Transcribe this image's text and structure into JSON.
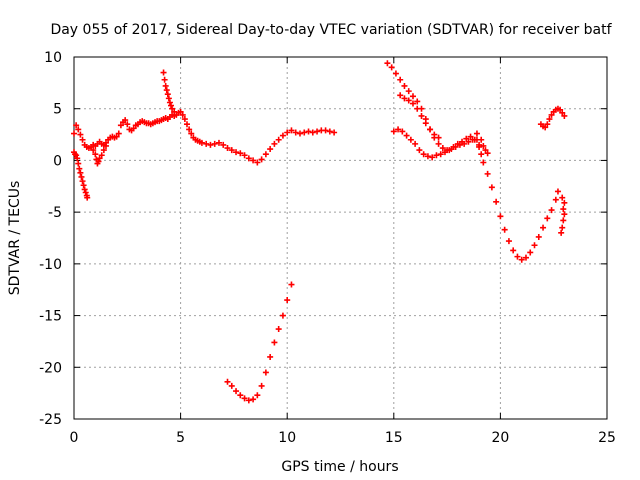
{
  "chart_data": {
    "type": "scatter",
    "title": "Day 055 of 2017, Sidereal Day-to-day VTEC variation (SDTVAR) for receiver batf",
    "xlabel": "GPS time / hours",
    "ylabel": "SDTVAR / TECUs",
    "xlim": [
      0,
      25
    ],
    "ylim": [
      -25,
      10
    ],
    "xticks": [
      0,
      5,
      10,
      15,
      20,
      25
    ],
    "yticks": [
      -25,
      -20,
      -15,
      -10,
      -5,
      0,
      5,
      10
    ],
    "xtick_labels": [
      "0",
      "5",
      "10",
      "15",
      "20",
      "25"
    ],
    "ytick_labels": [
      "-25",
      "-20",
      "-15",
      "-10",
      "-5",
      "0",
      "5",
      "10"
    ],
    "grid": true,
    "marker": "plus",
    "color": "#ff0000",
    "series": [
      {
        "points": [
          [
            0.0,
            2.6
          ],
          [
            0.1,
            3.4
          ],
          [
            0.2,
            3.0
          ],
          [
            0.3,
            2.5
          ],
          [
            0.4,
            2.0
          ],
          [
            0.5,
            1.5
          ],
          [
            0.6,
            1.3
          ],
          [
            0.7,
            1.2
          ],
          [
            0.8,
            1.3
          ],
          [
            0.9,
            1.5
          ],
          [
            1.0,
            1.4
          ],
          [
            1.1,
            1.6
          ],
          [
            1.2,
            1.8
          ],
          [
            1.3,
            1.6
          ],
          [
            1.4,
            1.5
          ],
          [
            1.5,
            1.7
          ],
          [
            1.6,
            2.0
          ],
          [
            1.7,
            2.2
          ],
          [
            1.8,
            2.3
          ],
          [
            1.9,
            2.2
          ],
          [
            2.0,
            2.3
          ],
          [
            2.1,
            2.6
          ],
          [
            2.2,
            3.4
          ],
          [
            2.3,
            3.7
          ],
          [
            2.4,
            3.9
          ],
          [
            2.5,
            3.5
          ],
          [
            2.6,
            3.0
          ],
          [
            2.7,
            2.9
          ],
          [
            2.8,
            3.1
          ],
          [
            2.9,
            3.4
          ],
          [
            3.0,
            3.5
          ],
          [
            3.1,
            3.7
          ],
          [
            3.2,
            3.8
          ],
          [
            3.3,
            3.7
          ],
          [
            3.4,
            3.6
          ],
          [
            3.5,
            3.6
          ],
          [
            3.6,
            3.5
          ],
          [
            3.7,
            3.6
          ],
          [
            3.8,
            3.7
          ],
          [
            3.9,
            3.8
          ],
          [
            4.0,
            3.8
          ],
          [
            4.1,
            3.9
          ],
          [
            4.2,
            4.0
          ],
          [
            4.3,
            4.1
          ],
          [
            4.4,
            4.0
          ],
          [
            4.5,
            4.2
          ],
          [
            4.6,
            4.4
          ],
          [
            4.7,
            4.3
          ],
          [
            4.8,
            4.4
          ],
          [
            4.9,
            4.6
          ],
          [
            5.0,
            4.7
          ],
          [
            5.1,
            4.4
          ],
          [
            5.2,
            4.0
          ],
          [
            5.3,
            3.5
          ],
          [
            5.4,
            3.0
          ],
          [
            5.5,
            2.6
          ],
          [
            5.6,
            2.2
          ],
          [
            5.7,
            2.0
          ],
          [
            5.8,
            1.9
          ],
          [
            5.9,
            1.8
          ],
          [
            6.0,
            1.7
          ],
          [
            6.2,
            1.6
          ],
          [
            6.4,
            1.5
          ],
          [
            6.6,
            1.6
          ],
          [
            6.8,
            1.7
          ],
          [
            7.0,
            1.5
          ],
          [
            7.2,
            1.2
          ],
          [
            7.4,
            1.0
          ],
          [
            7.6,
            0.8
          ],
          [
            7.8,
            0.7
          ],
          [
            8.0,
            0.5
          ],
          [
            8.2,
            0.2
          ],
          [
            8.4,
            0.0
          ],
          [
            8.6,
            -0.2
          ],
          [
            8.8,
            0.1
          ],
          [
            9.0,
            0.6
          ],
          [
            9.2,
            1.1
          ],
          [
            9.4,
            1.6
          ],
          [
            9.6,
            2.0
          ],
          [
            9.8,
            2.4
          ],
          [
            10.0,
            2.7
          ],
          [
            10.2,
            2.9
          ],
          [
            10.4,
            2.7
          ],
          [
            10.6,
            2.6
          ],
          [
            10.8,
            2.7
          ],
          [
            11.0,
            2.8
          ],
          [
            11.2,
            2.7
          ],
          [
            11.4,
            2.8
          ],
          [
            11.6,
            2.9
          ],
          [
            11.8,
            2.9
          ],
          [
            12.0,
            2.8
          ],
          [
            12.2,
            2.7
          ]
        ]
      },
      {
        "points": [
          [
            0.0,
            0.8
          ],
          [
            0.05,
            0.6
          ],
          [
            0.1,
            0.5
          ],
          [
            0.15,
            0.2
          ],
          [
            0.2,
            -0.3
          ],
          [
            0.25,
            -0.8
          ],
          [
            0.3,
            -1.2
          ],
          [
            0.35,
            -1.6
          ],
          [
            0.4,
            -2.0
          ],
          [
            0.45,
            -2.4
          ],
          [
            0.5,
            -2.8
          ],
          [
            0.55,
            -3.1
          ],
          [
            0.6,
            -3.4
          ],
          [
            0.62,
            -3.6
          ]
        ]
      },
      {
        "points": [
          [
            0.9,
            1.0
          ],
          [
            1.0,
            0.6
          ],
          [
            1.05,
            0.1
          ],
          [
            1.1,
            -0.3
          ],
          [
            1.15,
            -0.1
          ],
          [
            1.2,
            0.2
          ],
          [
            1.3,
            0.5
          ],
          [
            1.4,
            1.0
          ],
          [
            1.5,
            1.4
          ]
        ]
      },
      {
        "points": [
          [
            4.2,
            8.5
          ],
          [
            4.25,
            7.8
          ],
          [
            4.3,
            7.2
          ],
          [
            4.35,
            6.8
          ],
          [
            4.4,
            6.4
          ],
          [
            4.45,
            6.0
          ],
          [
            4.5,
            5.6
          ],
          [
            4.55,
            5.3
          ],
          [
            4.6,
            5.0
          ],
          [
            4.7,
            4.7
          ]
        ]
      },
      {
        "points": [
          [
            7.2,
            -21.4
          ],
          [
            7.4,
            -21.8
          ],
          [
            7.6,
            -22.3
          ],
          [
            7.8,
            -22.7
          ],
          [
            8.0,
            -23.0
          ],
          [
            8.2,
            -23.2
          ],
          [
            8.4,
            -23.1
          ],
          [
            8.6,
            -22.7
          ],
          [
            8.8,
            -21.8
          ],
          [
            9.0,
            -20.5
          ],
          [
            9.2,
            -19.0
          ],
          [
            9.4,
            -17.6
          ],
          [
            9.6,
            -16.3
          ],
          [
            9.8,
            -15.0
          ],
          [
            10.0,
            -13.5
          ],
          [
            10.2,
            -12.0
          ]
        ]
      },
      {
        "points": [
          [
            14.7,
            9.4
          ],
          [
            14.9,
            9.0
          ],
          [
            15.1,
            8.4
          ],
          [
            15.3,
            7.8
          ],
          [
            15.5,
            7.2
          ],
          [
            15.7,
            6.7
          ],
          [
            15.9,
            6.2
          ],
          [
            16.1,
            5.7
          ],
          [
            16.3,
            5.0
          ],
          [
            16.5,
            4.0
          ],
          [
            16.7,
            3.0
          ],
          [
            16.9,
            2.2
          ],
          [
            17.1,
            1.6
          ],
          [
            17.3,
            1.2
          ],
          [
            17.5,
            1.0
          ],
          [
            17.7,
            1.1
          ],
          [
            17.9,
            1.3
          ],
          [
            18.1,
            1.5
          ],
          [
            18.3,
            1.6
          ],
          [
            18.5,
            1.8
          ],
          [
            18.7,
            2.0
          ],
          [
            18.9,
            2.6
          ]
        ]
      },
      {
        "points": [
          [
            15.3,
            6.3
          ],
          [
            15.5,
            6.0
          ],
          [
            15.7,
            5.8
          ],
          [
            15.9,
            5.5
          ],
          [
            16.1,
            5.0
          ],
          [
            16.3,
            4.3
          ],
          [
            16.5,
            3.6
          ],
          [
            16.7,
            3.0
          ],
          [
            16.9,
            2.5
          ],
          [
            17.1,
            2.2
          ]
        ]
      },
      {
        "points": [
          [
            15.0,
            2.8
          ],
          [
            15.2,
            3.0
          ],
          [
            15.4,
            2.8
          ],
          [
            15.6,
            2.4
          ],
          [
            15.8,
            2.0
          ],
          [
            16.0,
            1.6
          ],
          [
            16.2,
            1.0
          ],
          [
            16.4,
            0.6
          ],
          [
            16.6,
            0.4
          ],
          [
            16.8,
            0.3
          ],
          [
            17.0,
            0.5
          ],
          [
            17.2,
            0.6
          ],
          [
            17.4,
            0.8
          ],
          [
            17.6,
            1.0
          ],
          [
            17.8,
            1.3
          ],
          [
            18.0,
            1.6
          ],
          [
            18.2,
            1.8
          ],
          [
            18.4,
            2.1
          ],
          [
            18.6,
            2.3
          ],
          [
            18.8,
            2.0
          ],
          [
            19.0,
            1.5
          ]
        ]
      },
      {
        "points": [
          [
            18.9,
            2.0
          ],
          [
            19.0,
            1.3
          ],
          [
            19.1,
            0.6
          ],
          [
            19.2,
            -0.2
          ],
          [
            19.4,
            -1.3
          ],
          [
            19.6,
            -2.6
          ],
          [
            19.8,
            -4.0
          ],
          [
            20.0,
            -5.4
          ],
          [
            20.2,
            -6.7
          ],
          [
            20.4,
            -7.8
          ],
          [
            20.6,
            -8.7
          ],
          [
            20.8,
            -9.3
          ],
          [
            21.0,
            -9.6
          ],
          [
            21.2,
            -9.4
          ],
          [
            21.4,
            -8.9
          ],
          [
            21.6,
            -8.2
          ],
          [
            21.8,
            -7.4
          ],
          [
            22.0,
            -6.5
          ],
          [
            22.2,
            -5.6
          ],
          [
            22.4,
            -4.8
          ],
          [
            22.6,
            -3.8
          ],
          [
            22.7,
            -3.0
          ]
        ]
      },
      {
        "points": [
          [
            19.1,
            2.0
          ],
          [
            19.2,
            1.4
          ],
          [
            19.3,
            1.0
          ],
          [
            19.4,
            0.7
          ]
        ]
      },
      {
        "points": [
          [
            21.9,
            3.5
          ],
          [
            22.0,
            3.3
          ],
          [
            22.1,
            3.2
          ],
          [
            22.2,
            3.5
          ],
          [
            22.3,
            4.0
          ],
          [
            22.4,
            4.4
          ],
          [
            22.5,
            4.7
          ],
          [
            22.6,
            4.9
          ],
          [
            22.7,
            5.0
          ],
          [
            22.8,
            4.9
          ],
          [
            22.9,
            4.6
          ],
          [
            23.0,
            4.3
          ]
        ]
      },
      {
        "points": [
          [
            22.85,
            -7.0
          ],
          [
            22.9,
            -6.5
          ],
          [
            22.95,
            -5.8
          ],
          [
            23.0,
            -5.2
          ],
          [
            22.95,
            -4.7
          ],
          [
            23.0,
            -4.1
          ],
          [
            22.9,
            -3.6
          ]
        ]
      }
    ]
  }
}
